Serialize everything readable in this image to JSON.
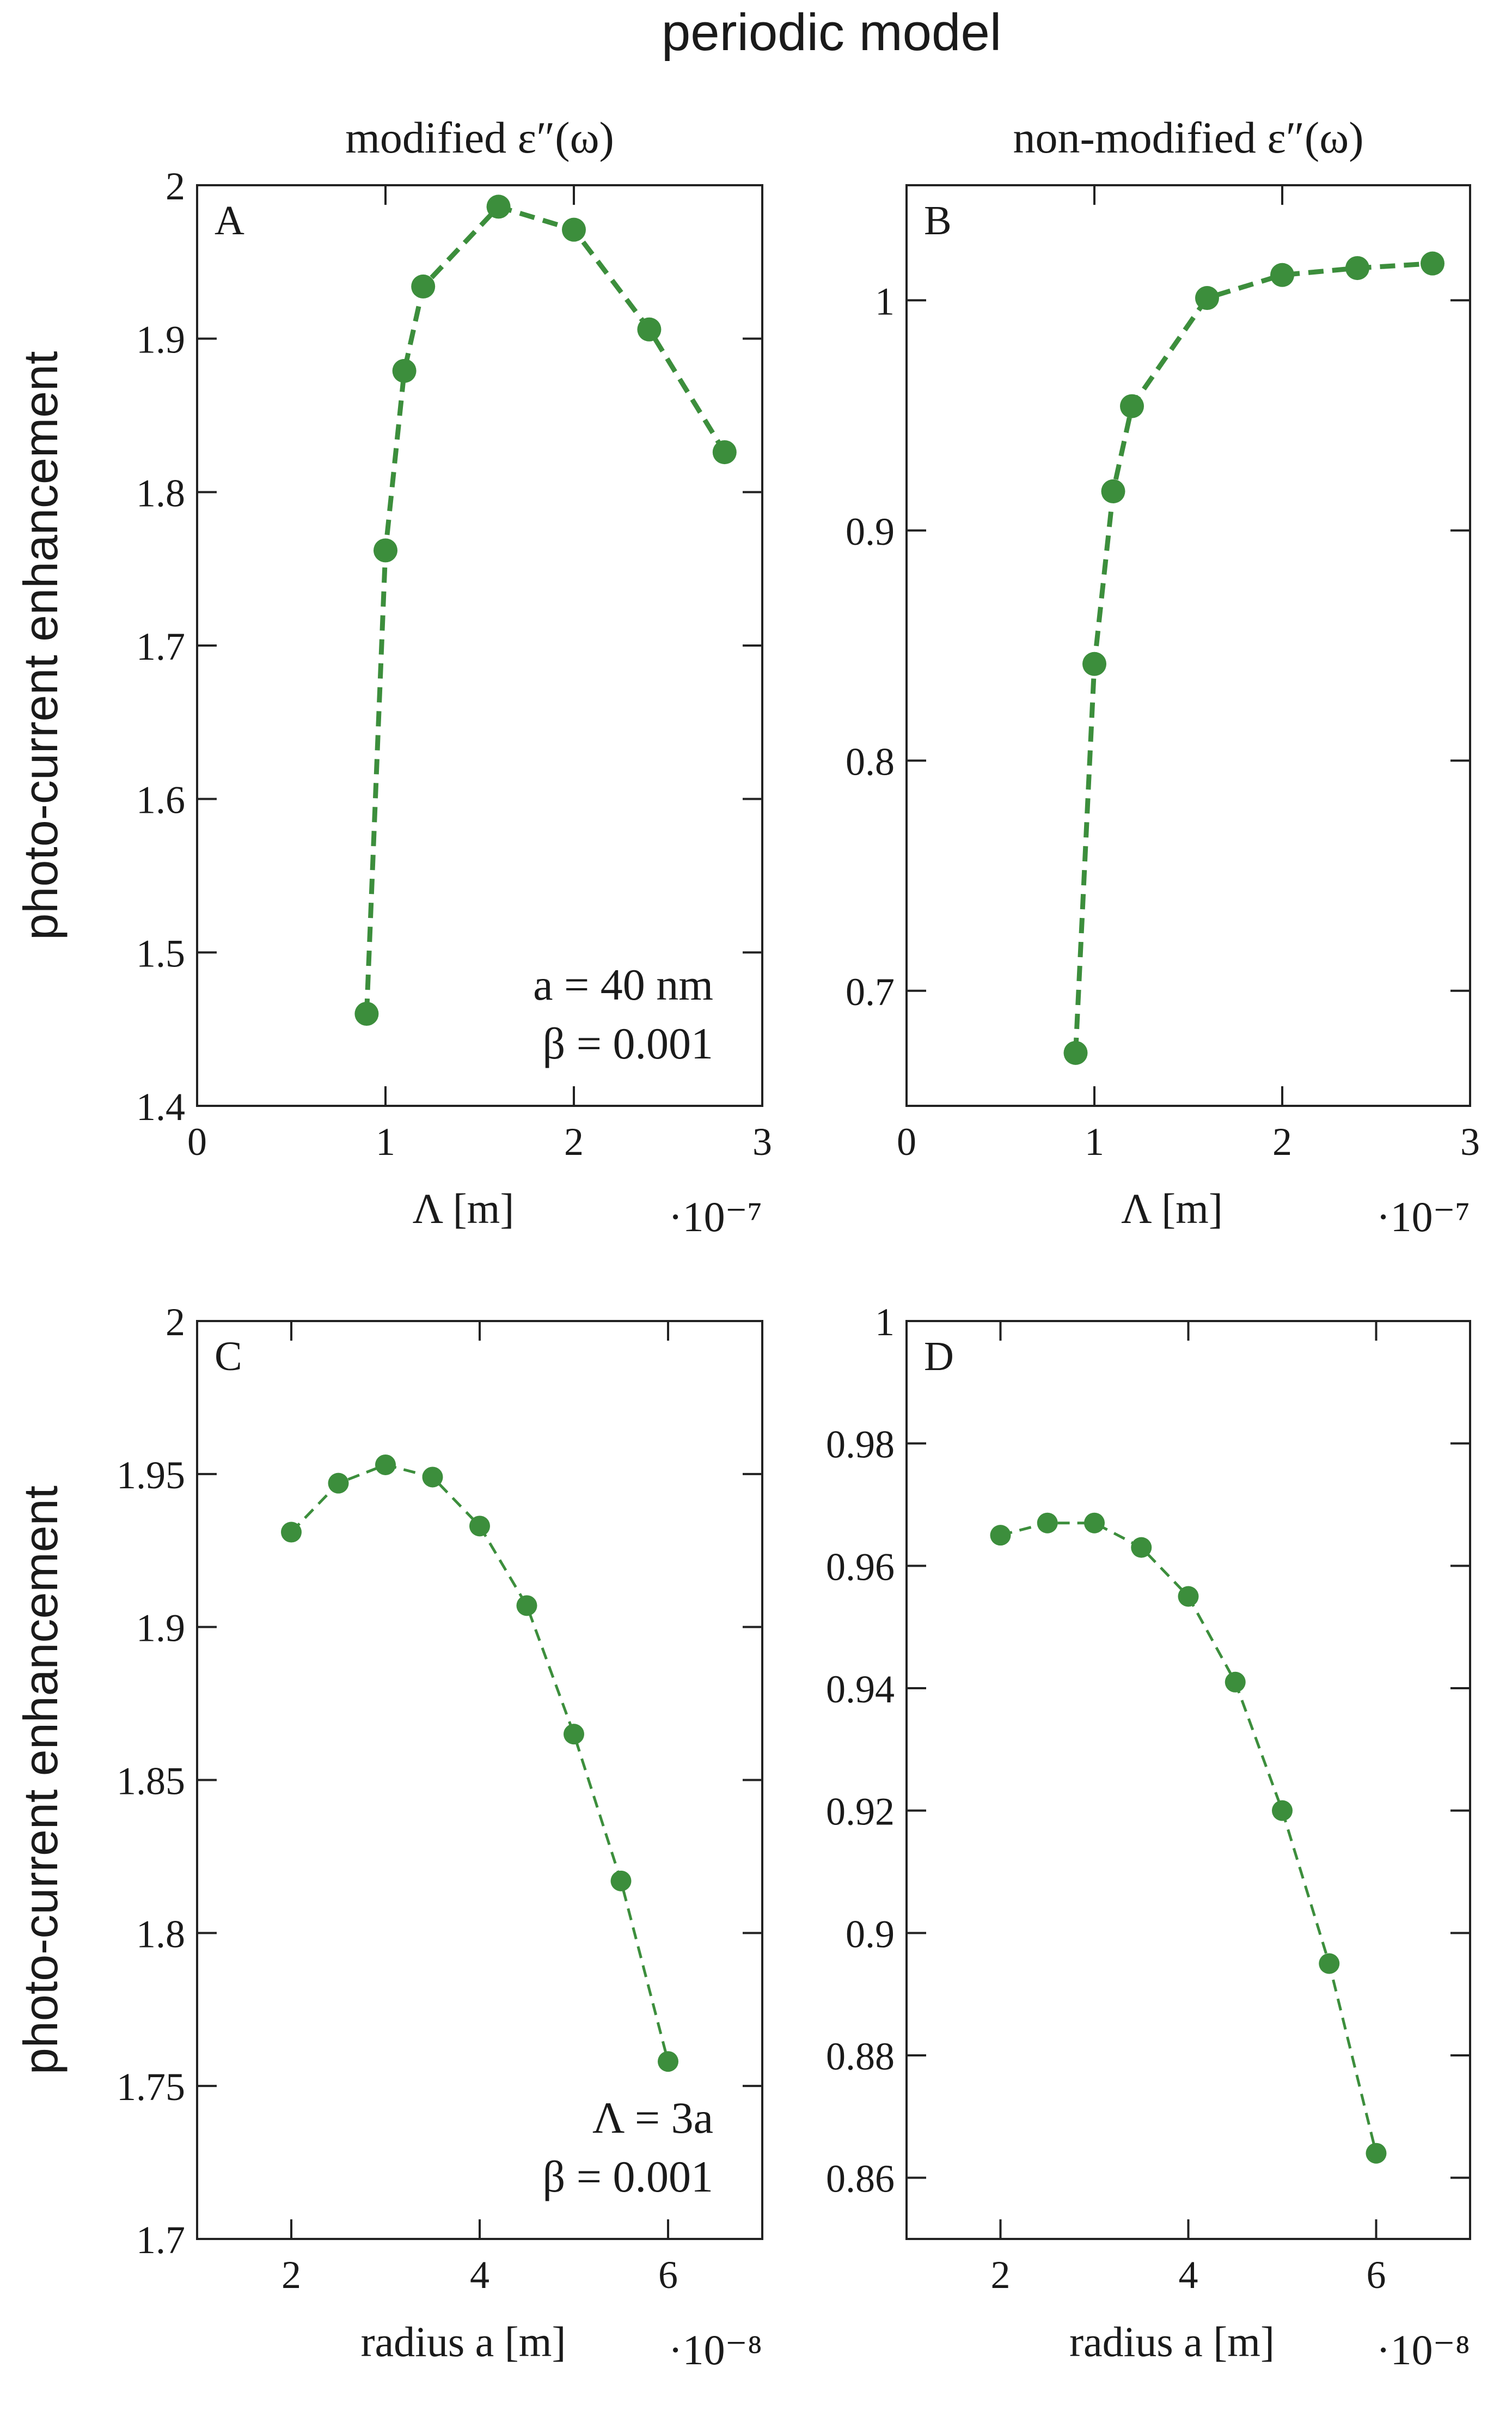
{
  "figure_title": "periodic model",
  "ylabel_shared": "photo-current enhancement",
  "colors": {
    "series": "#3c8e3c",
    "axis": "#222222",
    "text": "#1a1a1a"
  },
  "chart_data": [
    {
      "panel": "A",
      "type": "line",
      "title": "modified ε″(ω)",
      "xlabel": "Λ [m]",
      "x_multiplier": "·10⁻⁷",
      "ylabel": "photo-current enhancement",
      "xlim": [
        0,
        3
      ],
      "ylim": [
        1.4,
        2
      ],
      "xticks": [
        0,
        1,
        2,
        3
      ],
      "xtick_labels": [
        "0",
        "1",
        "2",
        "3"
      ],
      "yticks": [
        1.4,
        1.5,
        1.6,
        1.7,
        1.8,
        1.9,
        2.0
      ],
      "ytick_labels": [
        "1.4",
        "1.5",
        "1.6",
        "1.7",
        "1.8",
        "1.9",
        "2"
      ],
      "series": [
        {
          "name": "enhancement",
          "x": [
            0.9,
            1.0,
            1.1,
            1.2,
            1.6,
            2.0,
            2.4,
            2.8
          ],
          "y": [
            1.46,
            1.762,
            1.879,
            1.934,
            1.986,
            1.971,
            1.906,
            1.826
          ]
        }
      ],
      "annotation": [
        "a = 40 nm",
        "β = 0.001"
      ],
      "annotation_position": "bottom-right",
      "line_style": "dashed-thick"
    },
    {
      "panel": "B",
      "type": "line",
      "title": "non-modified ε″(ω)",
      "xlabel": "Λ [m]",
      "x_multiplier": "·10⁻⁷",
      "ylabel": "",
      "xlim": [
        0,
        3
      ],
      "ylim": [
        0.65,
        1.05
      ],
      "xticks": [
        0,
        1,
        2,
        3
      ],
      "xtick_labels": [
        "0",
        "1",
        "2",
        "3"
      ],
      "yticks": [
        0.7,
        0.8,
        0.9,
        1.0
      ],
      "ytick_labels": [
        "0.7",
        "0.8",
        "0.9",
        "1"
      ],
      "series": [
        {
          "name": "enhancement",
          "x": [
            0.9,
            1.0,
            1.1,
            1.2,
            1.6,
            2.0,
            2.4,
            2.8
          ],
          "y": [
            0.673,
            0.842,
            0.917,
            0.954,
            1.001,
            1.011,
            1.014,
            1.016
          ]
        }
      ],
      "annotation": [],
      "line_style": "dashed-thick"
    },
    {
      "panel": "C",
      "type": "line",
      "title": "",
      "xlabel": "radius a [m]",
      "x_multiplier": "·10⁻⁸",
      "ylabel": "photo-current enhancement",
      "xlim": [
        1,
        7
      ],
      "ylim": [
        1.7,
        2
      ],
      "xticks": [
        2,
        4,
        6
      ],
      "xtick_labels": [
        "2",
        "4",
        "6"
      ],
      "yticks": [
        1.7,
        1.75,
        1.8,
        1.85,
        1.9,
        1.95,
        2.0
      ],
      "ytick_labels": [
        "1.7",
        "1.75",
        "1.8",
        "1.85",
        "1.9",
        "1.95",
        "2"
      ],
      "series": [
        {
          "name": "enhancement",
          "x": [
            2.0,
            2.5,
            3.0,
            3.5,
            4.0,
            4.5,
            5.0,
            5.5,
            6.0
          ],
          "y": [
            1.931,
            1.947,
            1.953,
            1.949,
            1.933,
            1.907,
            1.865,
            1.817,
            1.758
          ]
        }
      ],
      "annotation": [
        "Λ = 3a",
        "β = 0.001"
      ],
      "annotation_position": "bottom-right",
      "line_style": "dashed-thin"
    },
    {
      "panel": "D",
      "type": "line",
      "title": "",
      "xlabel": "radius a [m]",
      "x_multiplier": "·10⁻⁸",
      "ylabel": "",
      "xlim": [
        1,
        7
      ],
      "ylim": [
        0.85,
        1.0
      ],
      "xticks": [
        2,
        4,
        6
      ],
      "xtick_labels": [
        "2",
        "4",
        "6"
      ],
      "yticks": [
        0.86,
        0.88,
        0.9,
        0.92,
        0.94,
        0.96,
        0.98,
        1.0
      ],
      "ytick_labels": [
        "0.86",
        "0.88",
        "0.9",
        "0.92",
        "0.94",
        "0.96",
        "0.98",
        "1"
      ],
      "series": [
        {
          "name": "enhancement",
          "x": [
            2.0,
            2.5,
            3.0,
            3.5,
            4.0,
            4.5,
            5.0,
            5.5,
            6.0
          ],
          "y": [
            0.965,
            0.967,
            0.967,
            0.963,
            0.955,
            0.941,
            0.92,
            0.895,
            0.864
          ]
        }
      ],
      "annotation": [],
      "line_style": "dashed-thin"
    }
  ]
}
